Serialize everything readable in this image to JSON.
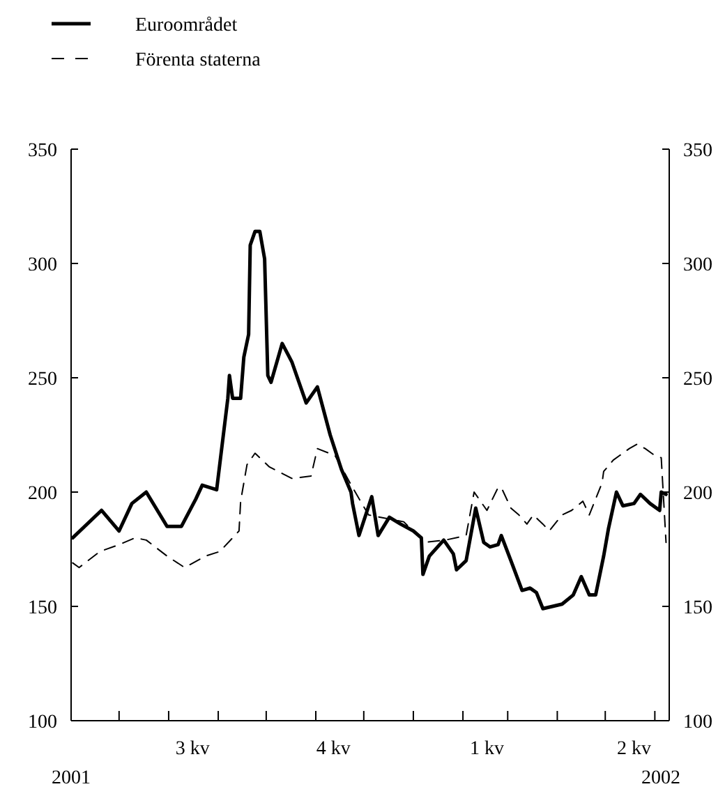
{
  "chart_data": {
    "type": "line",
    "xlim": [
      "2001-06-01",
      "2002-06-10"
    ],
    "ylim": [
      100,
      350
    ],
    "yticks": [
      100,
      150,
      200,
      250,
      300,
      350
    ],
    "y2lim": [
      100,
      350
    ],
    "y2ticks": [
      100,
      150,
      200,
      250,
      300,
      350
    ],
    "xticks": [
      {
        "value": "2001-07-01",
        "label": null
      },
      {
        "value": "2001-08-01",
        "label": null
      },
      {
        "value": "2001-09-01",
        "label": null
      },
      {
        "value": "2001-10-01",
        "label": null
      },
      {
        "value": "2001-11-01",
        "label": null
      },
      {
        "value": "2001-12-01",
        "label": null
      },
      {
        "value": "2002-01-01",
        "label": null
      },
      {
        "value": "2002-02-01",
        "label": null
      },
      {
        "value": "2002-03-01",
        "label": null
      },
      {
        "value": "2002-04-01",
        "label": null
      },
      {
        "value": "2002-05-01",
        "label": null
      },
      {
        "value": "2002-06-01",
        "label": null
      },
      {
        "value": "2001-08-16",
        "label": "3 kv"
      },
      {
        "value": "2001-11-12",
        "label": "4 kv"
      },
      {
        "value": "2002-02-16",
        "label": "1 kv"
      },
      {
        "value": "2002-05-19",
        "label": "2 kv"
      }
    ],
    "legend": "top left",
    "grid": false,
    "annotations": [
      "2001",
      "2002"
    ],
    "series": [
      {
        "name": "Euroområdet",
        "color": "#000000",
        "line_style": "solid",
        "x": [
          "2001-06-02",
          "2001-06-20",
          "2001-07-01",
          "2001-07-09",
          "2001-07-18",
          "2001-07-31",
          "2001-08-09",
          "2001-08-18",
          "2001-08-22",
          "2001-08-31",
          "2001-09-07",
          "2001-09-08",
          "2001-09-10",
          "2001-09-15",
          "2001-09-17",
          "2001-09-20",
          "2001-09-21",
          "2001-09-24",
          "2001-09-27",
          "2001-09-30",
          "2001-10-02",
          "2001-10-04",
          "2001-10-11",
          "2001-10-17",
          "2001-10-26",
          "2001-11-02",
          "2001-11-10",
          "2001-11-17",
          "2001-11-23",
          "2001-11-24",
          "2001-11-28",
          "2001-12-06",
          "2001-12-10",
          "2001-12-17",
          "2001-12-24",
          "2002-01-01",
          "2002-01-06",
          "2002-01-07",
          "2002-01-11",
          "2002-01-20",
          "2002-01-26",
          "2002-01-28",
          "2002-02-03",
          "2002-02-09",
          "2002-02-14",
          "2002-02-18",
          "2002-02-23",
          "2002-02-25",
          "2002-03-03",
          "2002-03-10",
          "2002-03-15",
          "2002-03-19",
          "2002-03-23",
          "2002-04-04",
          "2002-04-11",
          "2002-04-16",
          "2002-04-21",
          "2002-04-25",
          "2002-04-30",
          "2002-05-03",
          "2002-05-08",
          "2002-05-12",
          "2002-05-19",
          "2002-05-23",
          "2002-05-29",
          "2002-06-04",
          "2002-06-05",
          "2002-06-08"
        ],
        "values": [
          180,
          192,
          183,
          195,
          200,
          185,
          185,
          197,
          203,
          201,
          241,
          251,
          241,
          241,
          259,
          269,
          308,
          314,
          314,
          302,
          251,
          248,
          265,
          257,
          239,
          246,
          225,
          210,
          200,
          195,
          181,
          198,
          181,
          189,
          186,
          183,
          180,
          164,
          172,
          179,
          173,
          166,
          170,
          193,
          178,
          176,
          177,
          181,
          170,
          157,
          158,
          156,
          149,
          151,
          155,
          163,
          155,
          155,
          172,
          184,
          200,
          194,
          195,
          199,
          195,
          192,
          200,
          199
        ]
      },
      {
        "name": "Förenta staterna",
        "color": "#000000",
        "line_style": "dashed",
        "x": [
          "2001-06-02",
          "2001-06-06",
          "2001-06-19",
          "2001-07-01",
          "2001-07-11",
          "2001-07-18",
          "2001-07-31",
          "2001-08-11",
          "2001-08-24",
          "2001-09-02",
          "2001-09-14",
          "2001-09-15",
          "2001-09-19",
          "2001-09-24",
          "2001-10-03",
          "2001-10-17",
          "2001-10-29",
          "2001-11-02",
          "2001-11-13",
          "2001-11-24",
          "2001-12-04",
          "2001-12-26",
          "2002-01-08",
          "2002-01-21",
          "2002-02-03",
          "2002-02-08",
          "2002-02-16",
          "2002-02-23",
          "2002-02-25",
          "2002-03-03",
          "2002-03-08",
          "2002-03-13",
          "2002-03-17",
          "2002-03-23",
          "2002-03-27",
          "2002-04-04",
          "2002-04-10",
          "2002-04-17",
          "2002-04-21",
          "2002-04-29",
          "2002-04-30",
          "2002-05-06",
          "2002-05-10",
          "2002-05-16",
          "2002-05-21",
          "2002-05-26",
          "2002-06-01",
          "2002-06-05",
          "2002-06-08"
        ],
        "values": [
          169,
          167,
          174,
          177,
          180,
          179,
          172,
          167,
          172,
          174,
          183,
          196,
          212,
          217,
          211,
          206,
          207,
          219,
          216,
          202,
          190,
          187,
          178,
          179,
          181,
          200,
          192,
          202,
          202,
          193,
          190,
          186,
          190,
          186,
          183,
          190,
          192,
          196,
          190,
          204,
          209,
          214,
          216,
          219,
          221,
          219,
          216,
          215,
          178
        ]
      }
    ]
  }
}
